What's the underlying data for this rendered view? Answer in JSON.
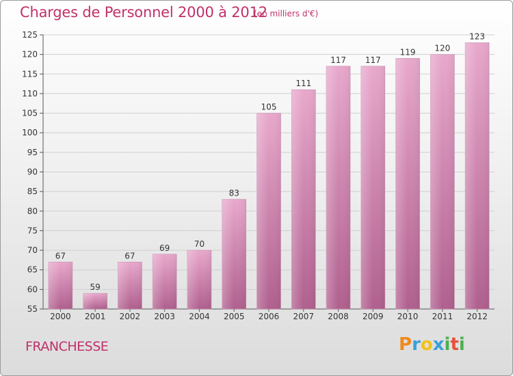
{
  "header": {
    "title": "Charges de Personnel 2000 à 2012",
    "unit_note": "(en milliers d'€)"
  },
  "commune": "FRANCHESSE",
  "logo": {
    "text": "Proxiti",
    "letters": [
      {
        "ch": "P",
        "color": "#f08a1c"
      },
      {
        "ch": "r",
        "color": "#3aa0d8"
      },
      {
        "ch": "o",
        "color": "#f2c21a"
      },
      {
        "ch": "x",
        "color": "#3aa0d8"
      },
      {
        "ch": "i",
        "color": "#4cb050"
      },
      {
        "ch": "t",
        "color": "#e8503a"
      },
      {
        "ch": "i",
        "color": "#4cb050"
      }
    ]
  },
  "colors": {
    "accent": "#c0306a",
    "bar_light": "#e8a8cc",
    "bar_dark": "#b0608e"
  },
  "chart_data": {
    "type": "bar",
    "title": "Charges de Personnel 2000 à 2012",
    "subtitle": "(en milliers d'€)",
    "categories": [
      "2000",
      "2001",
      "2002",
      "2003",
      "2004",
      "2005",
      "2006",
      "2007",
      "2008",
      "2009",
      "2010",
      "2011",
      "2012"
    ],
    "values": [
      67,
      59,
      67,
      69,
      70,
      83,
      105,
      111,
      117,
      117,
      119,
      120,
      123
    ],
    "ylim": [
      55,
      125
    ],
    "yticks": [
      55,
      60,
      65,
      70,
      75,
      80,
      85,
      90,
      95,
      100,
      105,
      110,
      115,
      120,
      125
    ],
    "xlabel": "",
    "ylabel": "",
    "grid": true,
    "data_labels": true
  }
}
